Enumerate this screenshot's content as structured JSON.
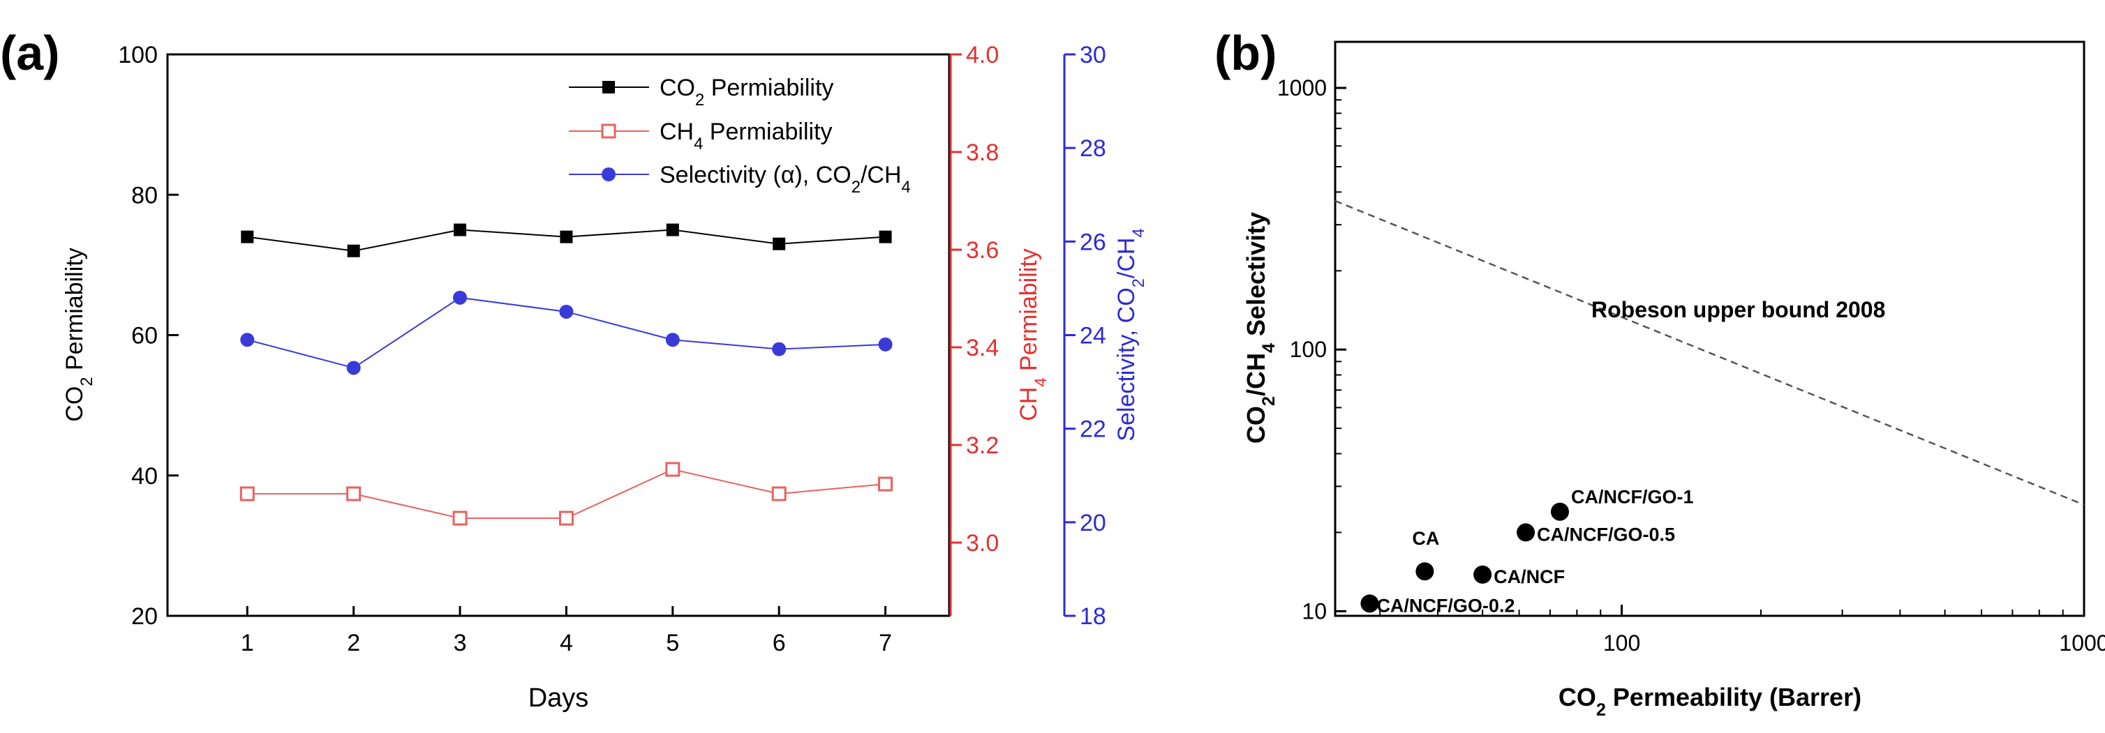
{
  "charts": {
    "a": {
      "panel_label": "(a)",
      "xlabel": "Days",
      "ylabel_left": [
        "CO",
        "2",
        " Permiability"
      ],
      "ylabel_red": [
        "CH",
        "4",
        " Permiability"
      ],
      "ylabel_blue": [
        "Selectivity, CO",
        "2",
        "/CH",
        "4"
      ],
      "legend": {
        "co2": [
          "CO",
          "2",
          " Permiability"
        ],
        "ch4": [
          "CH",
          "4",
          " Permiability"
        ],
        "sel": [
          "Selectivity (α), CO",
          "2",
          "/CH",
          "4"
        ]
      }
    },
    "b": {
      "panel_label": "(b)",
      "xlabel": [
        "CO",
        "2",
        " Permeability (Barrer)"
      ],
      "ylabel": [
        "CO",
        "2",
        "/CH",
        "4",
        " Selectivity"
      ],
      "line_label": "Robeson upper bound 2008"
    }
  },
  "colors": {
    "co2": "#000000",
    "ch4": "#e8625f",
    "sel": "#3a3ad8",
    "red_axis": "#e53030",
    "blue_axis": "#2b2bd6",
    "bound": "#555555"
  },
  "chart_data": [
    {
      "type": "line",
      "x": [
        1,
        2,
        3,
        4,
        5,
        6,
        7
      ],
      "xticks": [
        "1",
        "2",
        "3",
        "4",
        "5",
        "6",
        "7"
      ],
      "xlim": [
        0.25,
        7.6
      ],
      "series": [
        {
          "key": "co2",
          "name": "CO2 Permiability",
          "axis": "left",
          "marker": "filled-square",
          "values": [
            74,
            72,
            75,
            74,
            75,
            73,
            74
          ]
        },
        {
          "key": "ch4",
          "name": "CH4 Permiability",
          "axis": "red",
          "marker": "open-square",
          "values": [
            3.1,
            3.1,
            3.05,
            3.05,
            3.15,
            3.1,
            3.12
          ]
        },
        {
          "key": "sel",
          "name": "Selectivity (α), CO2/CH4",
          "axis": "blue",
          "marker": "filled-circle",
          "values": [
            23.9,
            23.3,
            24.8,
            24.5,
            23.9,
            23.7,
            23.8
          ]
        }
      ],
      "y_left": {
        "ylim": [
          20,
          100
        ],
        "ticks": [
          "20",
          "40",
          "60",
          "80",
          "100"
        ]
      },
      "y_red": {
        "ylim": [
          2.85,
          4.0
        ],
        "ticks": [
          "3.0",
          "3.2",
          "3.4",
          "3.6",
          "3.8",
          "4.0"
        ]
      },
      "y_blue": {
        "ylim": [
          18,
          30
        ],
        "ticks": [
          "18",
          "20",
          "22",
          "24",
          "26",
          "28",
          "30"
        ]
      },
      "legend_position": "top-right"
    },
    {
      "type": "scatter",
      "xscale": "log",
      "yscale": "log",
      "xlim": [
        24,
        1000
      ],
      "ylim": [
        9.6,
        1500
      ],
      "xticks": [
        "100",
        "1000"
      ],
      "yticks": [
        "10",
        "100",
        "1000"
      ],
      "points": [
        {
          "label": "CA",
          "x": 37.5,
          "y": 14.2
        },
        {
          "label": "CA/NCF",
          "x": 50,
          "y": 13.8
        },
        {
          "label": "CA/NCF/GO-0.2",
          "x": 28.5,
          "y": 10.7
        },
        {
          "label": "CA/NCF/GO-0.5",
          "x": 62,
          "y": 20
        },
        {
          "label": "CA/NCF/GO-1",
          "x": 73.5,
          "y": 24
        }
      ],
      "upper_bound": {
        "x": [
          24,
          1000
        ],
        "y": [
          370,
          25.5
        ],
        "style": "dashed"
      }
    }
  ]
}
